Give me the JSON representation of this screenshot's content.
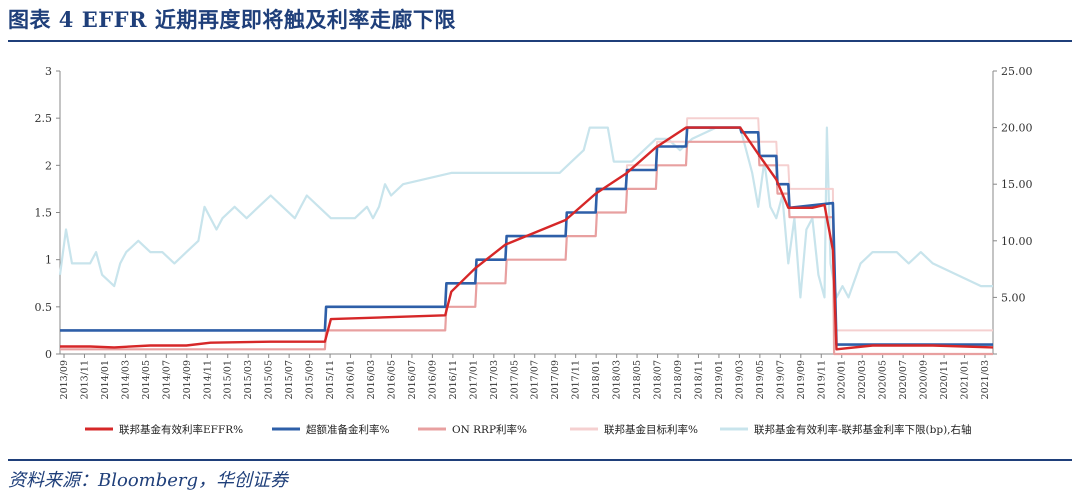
{
  "page": {
    "figure_title": "图表 4   EFFR 近期再度即将触及利率走廊下限",
    "source": "资料来源：Bloomberg，华创证券"
  },
  "chart_data": {
    "type": "line",
    "y_left": {
      "min": 0,
      "max": 3,
      "ticks": [
        "0",
        "0.5",
        "1",
        "1.5",
        "2",
        "2.5",
        "3"
      ]
    },
    "y_right": {
      "min": 0,
      "max": 25,
      "ticks": [
        "",
        "5.00",
        "10.00",
        "15.00",
        "20.00",
        "25.00"
      ]
    },
    "x_range": [
      2013.75,
      2021.5
    ],
    "x_ticks": [
      "2013/09",
      "2013/11",
      "2014/01",
      "2014/03",
      "2014/05",
      "2014/07",
      "2014/09",
      "2014/11",
      "2015/01",
      "2015/03",
      "2015/05",
      "2015/07",
      "2015/09",
      "2015/11",
      "2016/01",
      "2016/03",
      "2016/05",
      "2016/07",
      "2016/09",
      "2016/11",
      "2017/01",
      "2017/03",
      "2017/05",
      "2017/07",
      "2017/09",
      "2017/11",
      "2018/01",
      "2018/03",
      "2018/05",
      "2018/07",
      "2018/09",
      "2018/11",
      "2019/01",
      "2019/03",
      "2019/05",
      "2019/07",
      "2019/09",
      "2019/11",
      "2020/01",
      "2020/03",
      "2020/05",
      "2020/07",
      "2020/09",
      "2020/11",
      "2021/01",
      "2021/03"
    ],
    "series": [
      {
        "name": "联邦基金有效利率EFFR%",
        "color": "#d62728",
        "axis": "left",
        "points": [
          [
            2013.75,
            0.08
          ],
          [
            2014.0,
            0.08
          ],
          [
            2014.2,
            0.07
          ],
          [
            2014.5,
            0.09
          ],
          [
            2014.8,
            0.09
          ],
          [
            2015.0,
            0.12
          ],
          [
            2015.5,
            0.13
          ],
          [
            2015.95,
            0.13
          ],
          [
            2016.0,
            0.37
          ],
          [
            2016.95,
            0.41
          ],
          [
            2017.0,
            0.66
          ],
          [
            2017.2,
            0.91
          ],
          [
            2017.45,
            1.16
          ],
          [
            2017.95,
            1.42
          ],
          [
            2018.2,
            1.7
          ],
          [
            2018.45,
            1.91
          ],
          [
            2018.7,
            2.19
          ],
          [
            2018.95,
            2.4
          ],
          [
            2019.4,
            2.4
          ],
          [
            2019.55,
            2.12
          ],
          [
            2019.7,
            1.85
          ],
          [
            2019.8,
            1.55
          ],
          [
            2020.0,
            1.55
          ],
          [
            2020.1,
            1.58
          ],
          [
            2020.17,
            1.1
          ],
          [
            2020.2,
            0.05
          ],
          [
            2020.5,
            0.09
          ],
          [
            2021.0,
            0.09
          ],
          [
            2021.5,
            0.07
          ]
        ]
      },
      {
        "name": "超额准备金利率%",
        "color": "#2e5fa8",
        "axis": "left",
        "points": [
          [
            2013.75,
            0.25
          ],
          [
            2015.95,
            0.25
          ],
          [
            2015.96,
            0.5
          ],
          [
            2016.95,
            0.5
          ],
          [
            2016.96,
            0.75
          ],
          [
            2017.2,
            0.75
          ],
          [
            2017.21,
            1.0
          ],
          [
            2017.45,
            1.0
          ],
          [
            2017.46,
            1.25
          ],
          [
            2017.95,
            1.25
          ],
          [
            2017.96,
            1.5
          ],
          [
            2018.2,
            1.5
          ],
          [
            2018.21,
            1.75
          ],
          [
            2018.45,
            1.75
          ],
          [
            2018.46,
            1.95
          ],
          [
            2018.7,
            1.95
          ],
          [
            2018.71,
            2.2
          ],
          [
            2018.95,
            2.2
          ],
          [
            2018.96,
            2.4
          ],
          [
            2019.4,
            2.4
          ],
          [
            2019.41,
            2.35
          ],
          [
            2019.55,
            2.35
          ],
          [
            2019.56,
            2.1
          ],
          [
            2019.7,
            2.1
          ],
          [
            2019.71,
            1.8
          ],
          [
            2019.8,
            1.8
          ],
          [
            2019.81,
            1.55
          ],
          [
            2020.17,
            1.6
          ],
          [
            2020.18,
            1.1
          ],
          [
            2020.2,
            0.1
          ],
          [
            2021.5,
            0.1
          ]
        ]
      },
      {
        "name": "ON RRP利率%",
        "color": "#e8a0a0",
        "axis": "left",
        "points": [
          [
            2013.75,
            0.05
          ],
          [
            2015.95,
            0.05
          ],
          [
            2015.96,
            0.25
          ],
          [
            2016.95,
            0.25
          ],
          [
            2016.96,
            0.5
          ],
          [
            2017.2,
            0.5
          ],
          [
            2017.21,
            0.75
          ],
          [
            2017.45,
            0.75
          ],
          [
            2017.46,
            1.0
          ],
          [
            2017.95,
            1.0
          ],
          [
            2017.96,
            1.25
          ],
          [
            2018.2,
            1.25
          ],
          [
            2018.21,
            1.5
          ],
          [
            2018.45,
            1.5
          ],
          [
            2018.46,
            1.75
          ],
          [
            2018.7,
            1.75
          ],
          [
            2018.71,
            2.0
          ],
          [
            2018.95,
            2.0
          ],
          [
            2018.96,
            2.25
          ],
          [
            2019.55,
            2.25
          ],
          [
            2019.56,
            2.0
          ],
          [
            2019.7,
            2.0
          ],
          [
            2019.71,
            1.7
          ],
          [
            2019.8,
            1.7
          ],
          [
            2019.81,
            1.45
          ],
          [
            2020.17,
            1.45
          ],
          [
            2020.18,
            0.0
          ],
          [
            2021.5,
            0.0
          ]
        ]
      },
      {
        "name": "联邦基金目标利率%",
        "color": "#f5d0d0",
        "axis": "left",
        "points": [
          [
            2013.75,
            0.25
          ],
          [
            2015.95,
            0.25
          ],
          [
            2015.96,
            0.5
          ],
          [
            2016.95,
            0.5
          ],
          [
            2016.96,
            0.75
          ],
          [
            2017.2,
            0.75
          ],
          [
            2017.21,
            1.0
          ],
          [
            2017.45,
            1.0
          ],
          [
            2017.46,
            1.25
          ],
          [
            2017.95,
            1.25
          ],
          [
            2017.96,
            1.5
          ],
          [
            2018.2,
            1.5
          ],
          [
            2018.21,
            1.75
          ],
          [
            2018.45,
            1.75
          ],
          [
            2018.46,
            2.0
          ],
          [
            2018.7,
            2.0
          ],
          [
            2018.71,
            2.25
          ],
          [
            2018.95,
            2.25
          ],
          [
            2018.96,
            2.5
          ],
          [
            2019.55,
            2.5
          ],
          [
            2019.56,
            2.25
          ],
          [
            2019.7,
            2.25
          ],
          [
            2019.71,
            2.0
          ],
          [
            2019.8,
            2.0
          ],
          [
            2019.81,
            1.75
          ],
          [
            2020.17,
            1.75
          ],
          [
            2020.18,
            0.25
          ],
          [
            2021.5,
            0.25
          ]
        ]
      },
      {
        "name": "联邦基金有效利率-联邦基金利率下限(bp),右轴",
        "color": "#c8e4ec",
        "axis": "right",
        "points": [
          [
            2013.75,
            7
          ],
          [
            2013.8,
            11
          ],
          [
            2013.85,
            8
          ],
          [
            2014.0,
            8
          ],
          [
            2014.05,
            9
          ],
          [
            2014.1,
            7
          ],
          [
            2014.2,
            6
          ],
          [
            2014.25,
            8
          ],
          [
            2014.3,
            9
          ],
          [
            2014.4,
            10
          ],
          [
            2014.5,
            9
          ],
          [
            2014.6,
            9
          ],
          [
            2014.7,
            8
          ],
          [
            2014.8,
            9
          ],
          [
            2014.9,
            10
          ],
          [
            2014.95,
            13
          ],
          [
            2015.05,
            11
          ],
          [
            2015.1,
            12
          ],
          [
            2015.2,
            13
          ],
          [
            2015.3,
            12
          ],
          [
            2015.4,
            13
          ],
          [
            2015.5,
            14
          ],
          [
            2015.6,
            13
          ],
          [
            2015.7,
            12
          ],
          [
            2015.75,
            13
          ],
          [
            2015.8,
            14
          ],
          [
            2015.9,
            13
          ],
          [
            2016.0,
            12
          ],
          [
            2016.2,
            12
          ],
          [
            2016.3,
            13
          ],
          [
            2016.35,
            12
          ],
          [
            2016.4,
            13
          ],
          [
            2016.45,
            15
          ],
          [
            2016.5,
            14
          ],
          [
            2016.6,
            15
          ],
          [
            2017.0,
            16
          ],
          [
            2017.5,
            16
          ],
          [
            2017.9,
            16
          ],
          [
            2018.0,
            17
          ],
          [
            2018.1,
            18
          ],
          [
            2018.15,
            20
          ],
          [
            2018.3,
            20
          ],
          [
            2018.35,
            17
          ],
          [
            2018.5,
            17
          ],
          [
            2018.6,
            18
          ],
          [
            2018.7,
            19
          ],
          [
            2018.8,
            19
          ],
          [
            2018.9,
            18
          ],
          [
            2019.0,
            19
          ],
          [
            2019.2,
            20
          ],
          [
            2019.4,
            20
          ],
          [
            2019.5,
            16
          ],
          [
            2019.55,
            13
          ],
          [
            2019.6,
            17
          ],
          [
            2019.65,
            13
          ],
          [
            2019.7,
            12
          ],
          [
            2019.75,
            14
          ],
          [
            2019.8,
            8
          ],
          [
            2019.85,
            12
          ],
          [
            2019.9,
            5
          ],
          [
            2019.95,
            11
          ],
          [
            2020.0,
            12
          ],
          [
            2020.05,
            7
          ],
          [
            2020.1,
            5
          ],
          [
            2020.12,
            20
          ],
          [
            2020.15,
            8
          ],
          [
            2020.2,
            5
          ],
          [
            2020.25,
            6
          ],
          [
            2020.3,
            5
          ],
          [
            2020.4,
            8
          ],
          [
            2020.5,
            9
          ],
          [
            2020.7,
            9
          ],
          [
            2020.8,
            8
          ],
          [
            2020.9,
            9
          ],
          [
            2021.0,
            8
          ],
          [
            2021.2,
            7
          ],
          [
            2021.4,
            6
          ],
          [
            2021.5,
            6
          ]
        ]
      }
    ]
  }
}
